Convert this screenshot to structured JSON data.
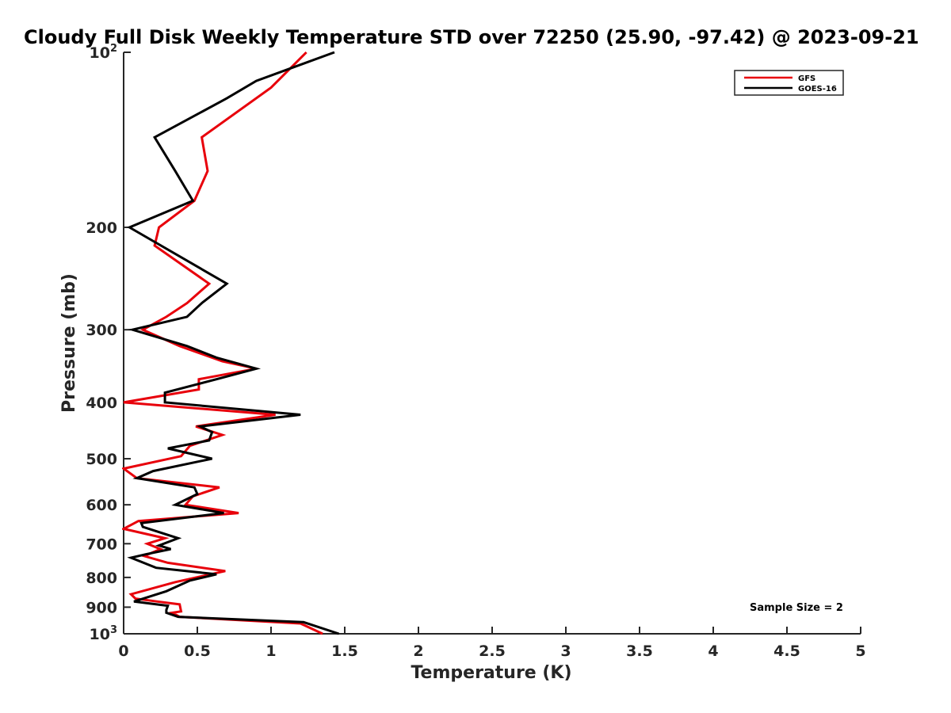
{
  "chart_data": {
    "type": "line",
    "title": "Cloudy Full Disk Weekly Temperature STD over 72250 (25.90, -97.42) @ 2023-09-21",
    "xlabel": "Temperature (K)",
    "ylabel": "Pressure (mb)",
    "xlim": [
      0,
      5
    ],
    "ylim": [
      100,
      1000
    ],
    "yscale": "log",
    "y_reversed": true,
    "grid": false,
    "legend_position": "top-right",
    "x_ticks": [
      0,
      0.5,
      1,
      1.5,
      2,
      2.5,
      3,
      3.5,
      4,
      4.5,
      5
    ],
    "x_tick_labels": [
      "0",
      "0.5",
      "1",
      "1.5",
      "2",
      "2.5",
      "3",
      "3.5",
      "4",
      "4.5",
      "5"
    ],
    "y_ticks": [
      100,
      200,
      300,
      400,
      500,
      600,
      700,
      800,
      900,
      1000
    ],
    "y_tick_labels": [
      "10^2",
      "200",
      "300",
      "400",
      "500",
      "600",
      "700",
      "800",
      "900",
      "10^3"
    ],
    "annotation": "Sample Size = 2",
    "series": [
      {
        "name": "GFS",
        "color": "#e8000b",
        "points": [
          [
            1.24,
            100
          ],
          [
            1.0,
            115
          ],
          [
            0.53,
            140
          ],
          [
            0.57,
            160
          ],
          [
            0.48,
            180
          ],
          [
            0.24,
            200
          ],
          [
            0.21,
            215
          ],
          [
            0.58,
            250
          ],
          [
            0.43,
            270
          ],
          [
            0.29,
            285
          ],
          [
            0.13,
            300
          ],
          [
            0.38,
            320
          ],
          [
            0.67,
            340
          ],
          [
            0.9,
            350
          ],
          [
            0.51,
            365
          ],
          [
            0.51,
            380
          ],
          [
            0.0,
            400
          ],
          [
            1.03,
            420
          ],
          [
            0.49,
            440
          ],
          [
            0.67,
            455
          ],
          [
            0.45,
            475
          ],
          [
            0.39,
            495
          ],
          [
            0.0,
            520
          ],
          [
            0.09,
            540
          ],
          [
            0.65,
            560
          ],
          [
            0.47,
            580
          ],
          [
            0.42,
            600
          ],
          [
            0.78,
            620
          ],
          [
            0.1,
            640
          ],
          [
            0.0,
            660
          ],
          [
            0.28,
            685
          ],
          [
            0.16,
            700
          ],
          [
            0.25,
            715
          ],
          [
            0.14,
            735
          ],
          [
            0.3,
            755
          ],
          [
            0.69,
            780
          ],
          [
            0.35,
            815
          ],
          [
            0.05,
            855
          ],
          [
            0.08,
            870
          ],
          [
            0.23,
            880
          ],
          [
            0.38,
            890
          ],
          [
            0.39,
            915
          ],
          [
            0.33,
            920
          ],
          [
            0.38,
            935
          ],
          [
            1.2,
            960
          ],
          [
            1.35,
            1000
          ]
        ]
      },
      {
        "name": "GOES-16",
        "color": "#000000",
        "points": [
          [
            1.43,
            100
          ],
          [
            0.9,
            112
          ],
          [
            0.7,
            120
          ],
          [
            0.21,
            140
          ],
          [
            0.35,
            160
          ],
          [
            0.47,
            180
          ],
          [
            0.04,
            200
          ],
          [
            0.7,
            250
          ],
          [
            0.53,
            270
          ],
          [
            0.43,
            285
          ],
          [
            0.06,
            300
          ],
          [
            0.43,
            320
          ],
          [
            0.63,
            335
          ],
          [
            0.9,
            350
          ],
          [
            0.63,
            365
          ],
          [
            0.28,
            385
          ],
          [
            0.28,
            400
          ],
          [
            1.2,
            420
          ],
          [
            0.52,
            440
          ],
          [
            0.6,
            450
          ],
          [
            0.58,
            465
          ],
          [
            0.3,
            480
          ],
          [
            0.6,
            500
          ],
          [
            0.2,
            525
          ],
          [
            0.09,
            540
          ],
          [
            0.48,
            560
          ],
          [
            0.5,
            575
          ],
          [
            0.35,
            600
          ],
          [
            0.68,
            620
          ],
          [
            0.12,
            645
          ],
          [
            0.13,
            655
          ],
          [
            0.37,
            685
          ],
          [
            0.24,
            705
          ],
          [
            0.32,
            715
          ],
          [
            0.15,
            730
          ],
          [
            0.05,
            740
          ],
          [
            0.22,
            770
          ],
          [
            0.63,
            790
          ],
          [
            0.45,
            810
          ],
          [
            0.29,
            845
          ],
          [
            0.07,
            880
          ],
          [
            0.3,
            895
          ],
          [
            0.29,
            910
          ],
          [
            0.29,
            920
          ],
          [
            0.37,
            935
          ],
          [
            1.22,
            955
          ],
          [
            1.46,
            1000
          ]
        ]
      }
    ]
  }
}
